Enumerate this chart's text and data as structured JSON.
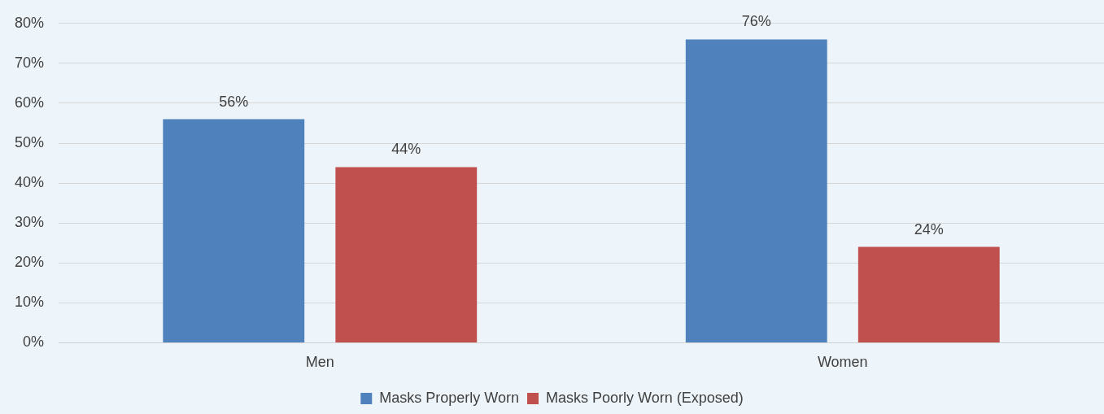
{
  "chart_data": {
    "type": "bar",
    "categories": [
      "Men",
      "Women"
    ],
    "series": [
      {
        "name": "Masks Properly Worn",
        "color": "#4f81bd",
        "values": [
          56,
          76
        ],
        "value_labels": [
          "56%",
          "76%"
        ]
      },
      {
        "name": "Masks Poorly Worn (Exposed)",
        "color": "#c0504d",
        "values": [
          44,
          24
        ],
        "value_labels": [
          "44%",
          "24%"
        ]
      }
    ],
    "ylim": [
      0,
      80
    ],
    "yticks": [
      {
        "value": 0,
        "label": "0%"
      },
      {
        "value": 10,
        "label": "10%"
      },
      {
        "value": 20,
        "label": "20%"
      },
      {
        "value": 30,
        "label": "30%"
      },
      {
        "value": 40,
        "label": "40%"
      },
      {
        "value": 50,
        "label": "50%"
      },
      {
        "value": 60,
        "label": "60%"
      },
      {
        "value": 70,
        "label": "70%"
      },
      {
        "value": 80,
        "label": "80%"
      }
    ],
    "grid": "y",
    "legend": "bottom"
  }
}
